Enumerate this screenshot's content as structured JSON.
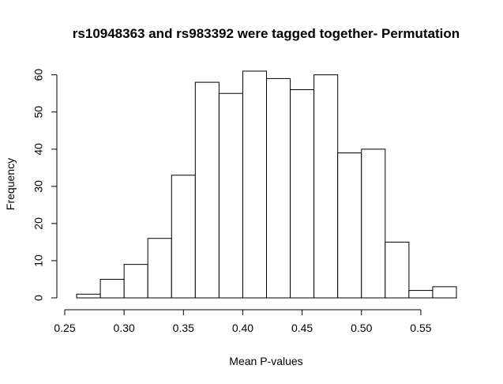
{
  "chart_data": {
    "type": "bar",
    "title": "rs10948363 and rs983392 were tagged together- Permutation",
    "xlabel": "Mean P-values",
    "ylabel": "Frequency",
    "bins": [
      {
        "x0": 0.26,
        "x1": 0.28,
        "count": 1
      },
      {
        "x0": 0.28,
        "x1": 0.3,
        "count": 5
      },
      {
        "x0": 0.3,
        "x1": 0.32,
        "count": 9
      },
      {
        "x0": 0.32,
        "x1": 0.34,
        "count": 16
      },
      {
        "x0": 0.34,
        "x1": 0.36,
        "count": 33
      },
      {
        "x0": 0.36,
        "x1": 0.38,
        "count": 58
      },
      {
        "x0": 0.38,
        "x1": 0.4,
        "count": 55
      },
      {
        "x0": 0.4,
        "x1": 0.42,
        "count": 61
      },
      {
        "x0": 0.42,
        "x1": 0.44,
        "count": 59
      },
      {
        "x0": 0.44,
        "x1": 0.46,
        "count": 56
      },
      {
        "x0": 0.46,
        "x1": 0.48,
        "count": 60
      },
      {
        "x0": 0.48,
        "x1": 0.5,
        "count": 39
      },
      {
        "x0": 0.5,
        "x1": 0.52,
        "count": 40
      },
      {
        "x0": 0.52,
        "x1": 0.54,
        "count": 15
      },
      {
        "x0": 0.54,
        "x1": 0.56,
        "count": 2
      },
      {
        "x0": 0.56,
        "x1": 0.58,
        "count": 3
      }
    ],
    "xlim": [
      0.25,
      0.58
    ],
    "ylim": [
      0,
      61
    ],
    "xticks": [
      0.25,
      0.3,
      0.35,
      0.4,
      0.45,
      0.5,
      0.55
    ],
    "xtick_labels": [
      "0.25",
      "0.30",
      "0.35",
      "0.40",
      "0.45",
      "0.50",
      "0.55"
    ],
    "yticks": [
      0,
      10,
      20,
      30,
      40,
      50,
      60
    ],
    "ytick_labels": [
      "0",
      "10",
      "20",
      "30",
      "40",
      "50",
      "60"
    ],
    "grid": false,
    "legend": "none"
  }
}
